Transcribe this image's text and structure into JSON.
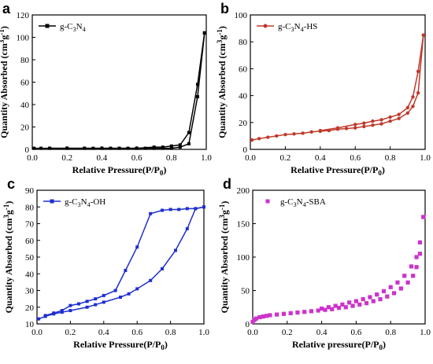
{
  "chart_data": [
    {
      "panel": "a",
      "type": "line",
      "color": "#000000",
      "marker": "square-filled",
      "xlabel": "Relative Pressure(P/P0)",
      "ylabel": "Quantity Absorbed (cm3g-1)",
      "xlim": [
        0.0,
        1.0
      ],
      "ylim": [
        0,
        120
      ],
      "xticks": [
        0.0,
        0.2,
        0.4,
        0.6,
        0.8,
        1.0
      ],
      "yticks": [
        0,
        20,
        40,
        60,
        80,
        100,
        120
      ],
      "legend": {
        "label": "g-C3N4",
        "position": "top-left"
      },
      "series": [
        {
          "branch": "adsorption",
          "x": [
            0.01,
            0.05,
            0.1,
            0.2,
            0.3,
            0.35,
            0.4,
            0.45,
            0.5,
            0.55,
            0.6,
            0.65,
            0.7,
            0.75,
            0.8,
            0.85,
            0.9,
            0.95,
            0.99
          ],
          "y": [
            1,
            1,
            1,
            1,
            1,
            1,
            1,
            1,
            1,
            1,
            1,
            1,
            1,
            1,
            1,
            2,
            5,
            47,
            104
          ]
        },
        {
          "branch": "desorption",
          "x": [
            0.99,
            0.95,
            0.9,
            0.85,
            0.8,
            0.75,
            0.7,
            0.6,
            0.5,
            0.4,
            0.3,
            0.2,
            0.1
          ],
          "y": [
            104,
            58,
            15,
            4,
            3,
            2,
            2,
            1,
            1,
            1,
            1,
            1,
            1
          ]
        }
      ]
    },
    {
      "panel": "b",
      "type": "line",
      "color": "#c0392b",
      "marker": "circle-filled",
      "xlabel": "Relative Pressure(P/P0)",
      "ylabel": "Quantity Absorbed (cm3g-1)",
      "xlim": [
        0.0,
        1.0
      ],
      "ylim": [
        0,
        100
      ],
      "xticks": [
        0.0,
        0.2,
        0.4,
        0.6,
        0.8,
        1.0
      ],
      "yticks": [
        0,
        20,
        40,
        60,
        80,
        100
      ],
      "legend": {
        "label": "g-C3N4-HS",
        "position": "top-left"
      },
      "series": [
        {
          "branch": "adsorption",
          "x": [
            0.01,
            0.05,
            0.1,
            0.15,
            0.2,
            0.25,
            0.3,
            0.35,
            0.4,
            0.45,
            0.5,
            0.55,
            0.6,
            0.65,
            0.7,
            0.75,
            0.8,
            0.85,
            0.9,
            0.93,
            0.96,
            0.99
          ],
          "y": [
            7,
            8,
            9,
            10,
            11,
            11.5,
            12,
            13,
            13.5,
            14,
            15,
            15.5,
            16,
            17,
            18,
            19,
            21,
            23,
            27,
            32,
            42,
            85
          ]
        },
        {
          "branch": "desorption",
          "x": [
            0.99,
            0.96,
            0.93,
            0.9,
            0.85,
            0.8,
            0.75,
            0.7,
            0.65,
            0.6,
            0.5,
            0.4
          ],
          "y": [
            85,
            58,
            39,
            31,
            26,
            24,
            22,
            21,
            19.5,
            18.5,
            16,
            14
          ]
        }
      ]
    },
    {
      "panel": "c",
      "type": "line",
      "color": "#1f2fd0",
      "marker": "square-filled",
      "xlabel": "Relative Pressure(P/P0)",
      "ylabel": "Quantity Absorbed (cm3g-1)",
      "xlim": [
        0.0,
        1.0
      ],
      "ylim": [
        10,
        90
      ],
      "xticks": [
        0.0,
        0.2,
        0.4,
        0.6,
        0.8,
        1.0
      ],
      "yticks": [
        10,
        20,
        30,
        40,
        50,
        60,
        70,
        80,
        90
      ],
      "legend": {
        "label": "g-C3N4-OH",
        "position": "top-left"
      },
      "series": [
        {
          "branch": "adsorption",
          "x": [
            0.01,
            0.05,
            0.1,
            0.15,
            0.2,
            0.3,
            0.35,
            0.4,
            0.5,
            0.55,
            0.6,
            0.68,
            0.75,
            0.83,
            0.9,
            0.95,
            1.0
          ],
          "y": [
            13,
            14.5,
            16,
            17,
            18,
            20,
            21.5,
            23,
            26,
            28,
            31,
            36,
            43,
            54,
            67,
            79,
            80
          ]
        },
        {
          "branch": "desorption",
          "x": [
            1.0,
            0.95,
            0.9,
            0.85,
            0.8,
            0.75,
            0.68,
            0.6,
            0.53,
            0.47,
            0.4,
            0.35,
            0.3,
            0.25,
            0.2,
            0.15,
            0.1,
            0.05
          ],
          "y": [
            80,
            79,
            79,
            78.5,
            78.5,
            78,
            76,
            56,
            42,
            30,
            27,
            25,
            23.5,
            22,
            21,
            18,
            16.5,
            15
          ]
        }
      ]
    },
    {
      "panel": "d",
      "type": "scatter",
      "color": "#cc33cc",
      "marker": "square-filled",
      "xlabel": "Relative pressure(P/P0)",
      "ylabel": "Quantity Absorbed (cm3g-1)",
      "xlim": [
        0.0,
        1.0
      ],
      "ylim": [
        0,
        200
      ],
      "xticks": [
        0.0,
        0.2,
        0.4,
        0.6,
        0.8,
        1.0
      ],
      "yticks": [
        0,
        50,
        100,
        150,
        200
      ],
      "legend": {
        "label": "g-C3N4-SBA",
        "position": "top-left"
      },
      "series": [
        {
          "branch": "adsorption",
          "x": [
            0.0,
            0.01,
            0.02,
            0.04,
            0.06,
            0.08,
            0.1,
            0.14,
            0.18,
            0.22,
            0.26,
            0.3,
            0.34,
            0.38,
            0.42,
            0.46,
            0.5,
            0.54,
            0.58,
            0.62,
            0.66,
            0.7,
            0.74,
            0.78,
            0.82,
            0.86,
            0.9,
            0.93,
            0.95,
            0.97,
            0.99
          ],
          "y": [
            3,
            6,
            8,
            10,
            11,
            12,
            13,
            14,
            15,
            16,
            17,
            18,
            19,
            20,
            21,
            22,
            24,
            25,
            27,
            29,
            31,
            34,
            37,
            41,
            46,
            53,
            62,
            72,
            85,
            105,
            160
          ]
        },
        {
          "branch": "desorption",
          "x": [
            0.99,
            0.97,
            0.95,
            0.92,
            0.88,
            0.84,
            0.8,
            0.76,
            0.72,
            0.68,
            0.64,
            0.6,
            0.56,
            0.52,
            0.48,
            0.44,
            0.4
          ],
          "y": [
            160,
            122,
            100,
            86,
            72,
            62,
            55,
            49,
            44,
            40,
            37,
            34,
            32,
            29,
            27,
            25,
            23
          ]
        }
      ]
    }
  ]
}
